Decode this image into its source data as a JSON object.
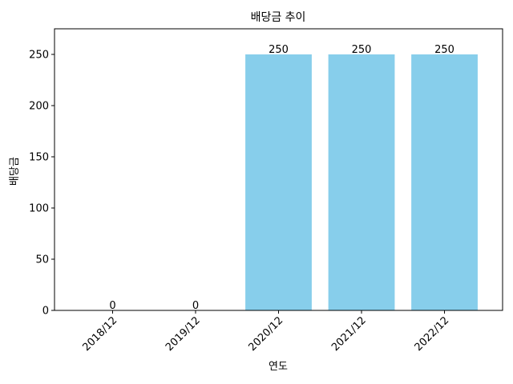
{
  "chart_data": {
    "type": "bar",
    "title": "배당금 추이",
    "xlabel": "연도",
    "ylabel": "배당금",
    "categories": [
      "2018/12",
      "2019/12",
      "2020/12",
      "2021/12",
      "2022/12"
    ],
    "values": [
      0,
      0,
      250,
      250,
      250
    ],
    "ylim": [
      0,
      275
    ],
    "yticks": [
      0,
      50,
      100,
      150,
      200,
      250
    ],
    "bar_color": "#87ceeb",
    "grid": false,
    "legend": "none"
  }
}
